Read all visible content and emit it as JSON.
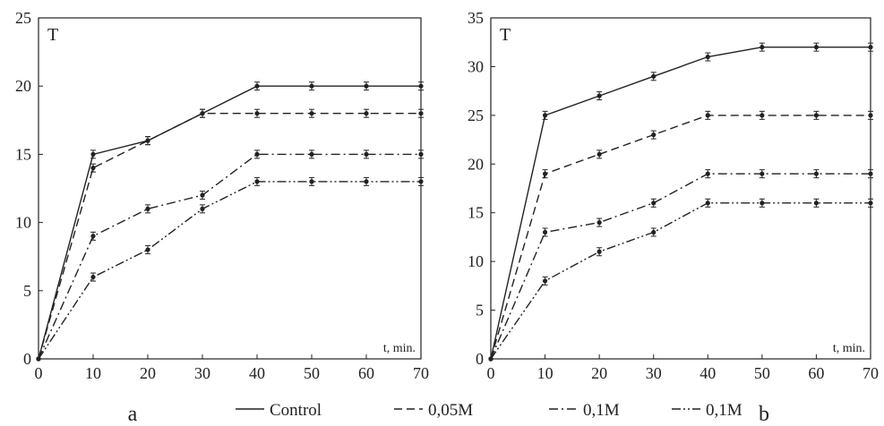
{
  "legend": {
    "items": [
      {
        "label": "Control",
        "style": "solid"
      },
      {
        "label": "0,05M",
        "style": "dashed"
      },
      {
        "label": "0,1M",
        "style": "dashdot"
      },
      {
        "label": "0,1M",
        "style": "dashdotdot"
      }
    ]
  },
  "chart_data": [
    {
      "type": "line",
      "panel_label": "a",
      "ylabel": "T",
      "xlabel": "t, min.",
      "x": [
        0,
        10,
        20,
        30,
        40,
        50,
        60,
        70
      ],
      "xlim": [
        0,
        70
      ],
      "ylim": [
        0,
        25
      ],
      "xticks": [
        0,
        10,
        20,
        30,
        40,
        50,
        60,
        70
      ],
      "yticks": [
        5,
        10,
        15,
        20,
        25
      ],
      "grid": false,
      "error_bars": true,
      "series": [
        {
          "name": "Control",
          "style": "solid",
          "values": [
            0,
            15,
            16,
            18,
            20,
            20,
            20,
            20
          ]
        },
        {
          "name": "0,05M",
          "style": "dashed",
          "values": [
            0,
            14,
            16,
            18,
            18,
            18,
            18,
            18
          ]
        },
        {
          "name": "0,1M",
          "style": "dashdot",
          "values": [
            0,
            9,
            11,
            12,
            15,
            15,
            15,
            15
          ]
        },
        {
          "name": "0,1M",
          "style": "dashdotdot",
          "values": [
            0,
            6,
            8,
            11,
            13,
            13,
            13,
            13
          ]
        }
      ]
    },
    {
      "type": "line",
      "panel_label": "b",
      "ylabel": "T",
      "xlabel": "t, min.",
      "x": [
        0,
        10,
        20,
        30,
        40,
        50,
        60,
        70
      ],
      "xlim": [
        0,
        70
      ],
      "ylim": [
        0,
        35
      ],
      "xticks": [
        0,
        10,
        20,
        30,
        40,
        50,
        60,
        70
      ],
      "yticks": [
        5,
        10,
        15,
        20,
        25,
        30,
        35
      ],
      "grid": false,
      "error_bars": true,
      "series": [
        {
          "name": "Control",
          "style": "solid",
          "values": [
            0,
            25,
            27,
            29,
            31,
            32,
            32,
            32
          ]
        },
        {
          "name": "0,05M",
          "style": "dashed",
          "values": [
            0,
            19,
            21,
            23,
            25,
            25,
            25,
            25
          ]
        },
        {
          "name": "0,1M",
          "style": "dashdot",
          "values": [
            0,
            13,
            14,
            16,
            19,
            19,
            19,
            19
          ]
        },
        {
          "name": "0,1M",
          "style": "dashdotdot",
          "values": [
            0,
            8,
            11,
            13,
            16,
            16,
            16,
            16
          ]
        }
      ]
    }
  ]
}
